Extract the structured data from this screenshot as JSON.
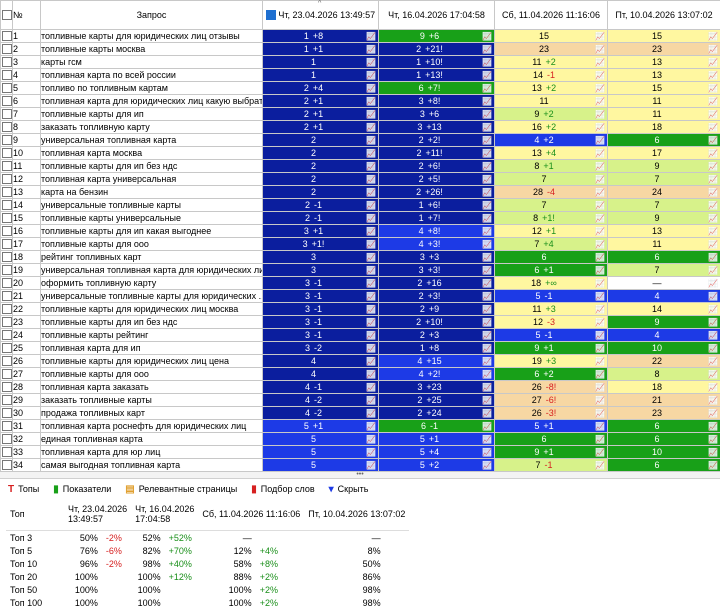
{
  "header": {
    "num": "№",
    "query": "Запрос",
    "dates": [
      "Чт, 23.04.2026 13:49:57",
      "Чт, 16.04.2026 17:04:58",
      "Сб, 11.04.2026 11:16:06",
      "Пт, 10.04.2026 13:07:02"
    ]
  },
  "rows": [
    {
      "n": "1",
      "q": "топливные карты для юридических лиц отзывы",
      "c": [
        [
          "1",
          "+8",
          "db"
        ],
        [
          "9",
          "+6",
          "gr"
        ],
        [
          "15",
          "",
          "yl"
        ],
        [
          "15",
          "",
          "yl"
        ]
      ]
    },
    {
      "n": "2",
      "q": "топливные карты москва",
      "c": [
        [
          "1",
          "+1",
          "db"
        ],
        [
          "2",
          "+21!",
          "db"
        ],
        [
          "23",
          "",
          "or"
        ],
        [
          "23",
          "",
          "or"
        ]
      ]
    },
    {
      "n": "3",
      "q": "карты гсм",
      "c": [
        [
          "1",
          "",
          "db"
        ],
        [
          "1",
          "+10!",
          "db"
        ],
        [
          "11",
          "+2",
          "yl"
        ],
        [
          "13",
          "",
          "yl"
        ]
      ]
    },
    {
      "n": "4",
      "q": "топливная карта по всей россии",
      "c": [
        [
          "1",
          "",
          "db"
        ],
        [
          "1",
          "+13!",
          "db"
        ],
        [
          "14",
          "-1",
          "yl"
        ],
        [
          "13",
          "",
          "yl"
        ]
      ]
    },
    {
      "n": "5",
      "q": "топливо по топливным картам",
      "c": [
        [
          "2",
          "+4",
          "db"
        ],
        [
          "6",
          "+7!",
          "gr"
        ],
        [
          "13",
          "+2",
          "yl"
        ],
        [
          "15",
          "",
          "yl"
        ]
      ]
    },
    {
      "n": "6",
      "q": "топливная карта для юридических лиц какую выбрать",
      "c": [
        [
          "2",
          "+1",
          "db"
        ],
        [
          "3",
          "+8!",
          "db"
        ],
        [
          "11",
          "",
          "yl"
        ],
        [
          "11",
          "",
          "yl"
        ]
      ]
    },
    {
      "n": "7",
      "q": "топливные карты для ип",
      "c": [
        [
          "2",
          "+1",
          "db"
        ],
        [
          "3",
          "+6",
          "db"
        ],
        [
          "9",
          "+2",
          "lg"
        ],
        [
          "11",
          "",
          "yl"
        ]
      ]
    },
    {
      "n": "8",
      "q": "заказать топливную карту",
      "c": [
        [
          "2",
          "+1",
          "db"
        ],
        [
          "3",
          "+13",
          "db"
        ],
        [
          "16",
          "+2",
          "yl"
        ],
        [
          "18",
          "",
          "yl"
        ]
      ]
    },
    {
      "n": "9",
      "q": "универсальная топливная карта",
      "c": [
        [
          "2",
          "",
          "db"
        ],
        [
          "2",
          "+2!",
          "db"
        ],
        [
          "4",
          "+2",
          "bl"
        ],
        [
          "6",
          "",
          "gr"
        ]
      ]
    },
    {
      "n": "10",
      "q": "топливная карта москва",
      "c": [
        [
          "2",
          "",
          "db"
        ],
        [
          "2",
          "+11!",
          "db"
        ],
        [
          "13",
          "+4",
          "yl"
        ],
        [
          "17",
          "",
          "yl"
        ]
      ]
    },
    {
      "n": "11",
      "q": "топливные карты для ип без ндс",
      "c": [
        [
          "2",
          "",
          "db"
        ],
        [
          "2",
          "+6!",
          "db"
        ],
        [
          "8",
          "+1",
          "lg"
        ],
        [
          "9",
          "",
          "lg"
        ]
      ]
    },
    {
      "n": "12",
      "q": "топливная карта универсальная",
      "c": [
        [
          "2",
          "",
          "db"
        ],
        [
          "2",
          "+5!",
          "db"
        ],
        [
          "7",
          "",
          "lg"
        ],
        [
          "7",
          "",
          "lg"
        ]
      ]
    },
    {
      "n": "13",
      "q": "карта на бензин",
      "c": [
        [
          "2",
          "",
          "db"
        ],
        [
          "2",
          "+26!",
          "db"
        ],
        [
          "28",
          "-4",
          "or"
        ],
        [
          "24",
          "",
          "or"
        ]
      ]
    },
    {
      "n": "14",
      "q": "универсальные топливные карты",
      "c": [
        [
          "2",
          "-1",
          "db"
        ],
        [
          "1",
          "+6!",
          "db"
        ],
        [
          "7",
          "",
          "lg"
        ],
        [
          "7",
          "",
          "lg"
        ]
      ]
    },
    {
      "n": "15",
      "q": "топливные карты универсальные",
      "c": [
        [
          "2",
          "-1",
          "db"
        ],
        [
          "1",
          "+7!",
          "db"
        ],
        [
          "8",
          "+1!",
          "lg"
        ],
        [
          "9",
          "",
          "lg"
        ]
      ]
    },
    {
      "n": "16",
      "q": "топливные карты для ип какая выгоднее",
      "c": [
        [
          "3",
          "+1",
          "db"
        ],
        [
          "4",
          "+8!",
          "bl"
        ],
        [
          "12",
          "+1",
          "yl"
        ],
        [
          "13",
          "",
          "yl"
        ]
      ]
    },
    {
      "n": "17",
      "q": "топливные карты для ооо",
      "c": [
        [
          "3",
          "+1!",
          "db"
        ],
        [
          "4",
          "+3!",
          "bl"
        ],
        [
          "7",
          "+4",
          "lg"
        ],
        [
          "11",
          "",
          "yl"
        ]
      ]
    },
    {
      "n": "18",
      "q": "рейтинг топливных карт",
      "c": [
        [
          "3",
          "",
          "db"
        ],
        [
          "3",
          "+3",
          "db"
        ],
        [
          "6",
          "",
          "gr"
        ],
        [
          "6",
          "",
          "gr"
        ]
      ]
    },
    {
      "n": "19",
      "q": "универсальная топливная карта для юридических лиц",
      "c": [
        [
          "3",
          "",
          "db"
        ],
        [
          "3",
          "+3!",
          "db"
        ],
        [
          "6",
          "+1",
          "gr"
        ],
        [
          "7",
          "",
          "lg"
        ]
      ]
    },
    {
      "n": "20",
      "q": "оформить топливную карту",
      "c": [
        [
          "3",
          "-1",
          "db"
        ],
        [
          "2",
          "+16",
          "db"
        ],
        [
          "18",
          "+∞",
          "yl"
        ],
        [
          "—",
          "",
          "wh"
        ]
      ]
    },
    {
      "n": "21",
      "q": "универсальные топливные карты для юридических ...",
      "c": [
        [
          "3",
          "-1",
          "db"
        ],
        [
          "2",
          "+3!",
          "db"
        ],
        [
          "5",
          "-1",
          "bl"
        ],
        [
          "4",
          "",
          "bl"
        ]
      ]
    },
    {
      "n": "22",
      "q": "топливные карты для юридических лиц москва",
      "c": [
        [
          "3",
          "-1",
          "db"
        ],
        [
          "2",
          "+9",
          "db"
        ],
        [
          "11",
          "+3",
          "yl"
        ],
        [
          "14",
          "",
          "yl"
        ]
      ]
    },
    {
      "n": "23",
      "q": "топливные карты для ип без ндс",
      "c": [
        [
          "3",
          "-1",
          "db"
        ],
        [
          "2",
          "+10!",
          "db"
        ],
        [
          "12",
          "-3",
          "yl"
        ],
        [
          "9",
          "",
          "gr"
        ]
      ]
    },
    {
      "n": "24",
      "q": "топливные карты рейтинг",
      "c": [
        [
          "3",
          "-1",
          "db"
        ],
        [
          "2",
          "+3",
          "db"
        ],
        [
          "5",
          "-1",
          "bl"
        ],
        [
          "4",
          "",
          "bl"
        ]
      ]
    },
    {
      "n": "25",
      "q": "топливная карта для ип",
      "c": [
        [
          "3",
          "-2",
          "db"
        ],
        [
          "1",
          "+8",
          "db"
        ],
        [
          "9",
          "+1",
          "gr"
        ],
        [
          "10",
          "",
          "gr"
        ]
      ]
    },
    {
      "n": "26",
      "q": "топливные карты для юридических лиц цена",
      "c": [
        [
          "4",
          "",
          "db"
        ],
        [
          "4",
          "+15",
          "bl"
        ],
        [
          "19",
          "+3",
          "yl"
        ],
        [
          "22",
          "",
          "or"
        ]
      ]
    },
    {
      "n": "27",
      "q": "топливные карты для ооо",
      "c": [
        [
          "4",
          "",
          "db"
        ],
        [
          "4",
          "+2!",
          "bl"
        ],
        [
          "6",
          "+2",
          "gr"
        ],
        [
          "8",
          "",
          "lg"
        ]
      ]
    },
    {
      "n": "28",
      "q": "топливная карта заказать",
      "c": [
        [
          "4",
          "-1",
          "db"
        ],
        [
          "3",
          "+23",
          "db"
        ],
        [
          "26",
          "-8!",
          "or"
        ],
        [
          "18",
          "",
          "yl"
        ]
      ]
    },
    {
      "n": "29",
      "q": "заказать топливные карты",
      "c": [
        [
          "4",
          "-2",
          "db"
        ],
        [
          "2",
          "+25",
          "db"
        ],
        [
          "27",
          "-6!",
          "or"
        ],
        [
          "21",
          "",
          "or"
        ]
      ]
    },
    {
      "n": "30",
      "q": "продажа топливных карт",
      "c": [
        [
          "4",
          "-2",
          "db"
        ],
        [
          "2",
          "+24",
          "db"
        ],
        [
          "26",
          "-3!",
          "or"
        ],
        [
          "23",
          "",
          "or"
        ]
      ]
    },
    {
      "n": "31",
      "q": "топливная карта роснефть для юридических лиц",
      "c": [
        [
          "5",
          "+1",
          "bl"
        ],
        [
          "6",
          "-1",
          "gr"
        ],
        [
          "5",
          "+1",
          "bl"
        ],
        [
          "6",
          "",
          "gr"
        ]
      ]
    },
    {
      "n": "32",
      "q": "единая топливная карта",
      "c": [
        [
          "5",
          "",
          "bl"
        ],
        [
          "5",
          "+1",
          "bl"
        ],
        [
          "6",
          "",
          "gr"
        ],
        [
          "6",
          "",
          "gr"
        ]
      ]
    },
    {
      "n": "33",
      "q": "топливная карта для юр лиц",
      "c": [
        [
          "5",
          "",
          "bl"
        ],
        [
          "5",
          "+4",
          "bl"
        ],
        [
          "9",
          "+1",
          "gr"
        ],
        [
          "10",
          "",
          "gr"
        ]
      ]
    },
    {
      "n": "34",
      "q": "самая выгодная топливная карта",
      "c": [
        [
          "5",
          "",
          "bl"
        ],
        [
          "5",
          "+2",
          "bl"
        ],
        [
          "7",
          "-1",
          "lg"
        ],
        [
          "6",
          "",
          "gr"
        ]
      ]
    }
  ],
  "toolbar": {
    "tops": "Топы",
    "metrics": "Показатели",
    "pages": "Релевантные страницы",
    "words": "Подбор слов",
    "hide": "Скрыть"
  },
  "stats": {
    "headers": [
      "Топ",
      "Чт, 23.04.2026\n13:49:57",
      "Чт, 16.04.2026\n17:04:58",
      "Сб, 11.04.2026 11:16:06",
      "Пт, 10.04.2026 13:07:02"
    ],
    "rows": [
      {
        "label": "Топ 3",
        "c": [
          [
            "50%",
            "-2%"
          ],
          [
            "52%",
            "+52%"
          ],
          [
            "—",
            ""
          ],
          [
            "—",
            ""
          ]
        ]
      },
      {
        "label": "Топ 5",
        "c": [
          [
            "76%",
            "-6%"
          ],
          [
            "82%",
            "+70%"
          ],
          [
            "12%",
            "+4%"
          ],
          [
            "8%",
            ""
          ]
        ]
      },
      {
        "label": "Топ 10",
        "c": [
          [
            "96%",
            "-2%"
          ],
          [
            "98%",
            "+40%"
          ],
          [
            "58%",
            "+8%"
          ],
          [
            "50%",
            ""
          ]
        ]
      },
      {
        "label": "Топ 20",
        "c": [
          [
            "100%",
            ""
          ],
          [
            "100%",
            "+12%"
          ],
          [
            "88%",
            "+2%"
          ],
          [
            "86%",
            ""
          ]
        ]
      },
      {
        "label": "Топ 50",
        "c": [
          [
            "100%",
            ""
          ],
          [
            "100%",
            ""
          ],
          [
            "100%",
            "+2%"
          ],
          [
            "98%",
            ""
          ]
        ]
      },
      {
        "label": "Топ 100",
        "c": [
          [
            "100%",
            ""
          ],
          [
            "100%",
            ""
          ],
          [
            "100%",
            "+2%"
          ],
          [
            "98%",
            ""
          ]
        ]
      }
    ]
  },
  "colors": {
    "dark_blue": "#0b1e9e",
    "blue": "#1d3ae6",
    "green": "#18a018",
    "light_green": "#d7f28a",
    "yellow": "#fff7a0",
    "orange": "#f7d7a3"
  }
}
